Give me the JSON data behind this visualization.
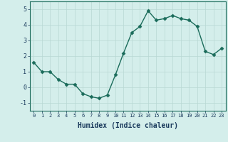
{
  "x": [
    0,
    1,
    2,
    3,
    4,
    5,
    6,
    7,
    8,
    9,
    10,
    11,
    12,
    13,
    14,
    15,
    16,
    17,
    18,
    19,
    20,
    21,
    22,
    23
  ],
  "y": [
    1.6,
    1.0,
    1.0,
    0.5,
    0.2,
    0.2,
    -0.4,
    -0.6,
    -0.7,
    -0.5,
    0.8,
    2.2,
    3.5,
    3.9,
    4.9,
    4.3,
    4.4,
    4.6,
    4.4,
    4.3,
    3.9,
    2.3,
    2.1,
    2.5
  ],
  "line_color": "#1a6b5a",
  "marker": "D",
  "marker_size": 2.5,
  "bg_color": "#d4eeeb",
  "grid_color": "#b8d8d4",
  "xlabel": "Humidex (Indice chaleur)",
  "xlim": [
    -0.5,
    23.5
  ],
  "ylim": [
    -1.5,
    5.5
  ],
  "yticks": [
    -1,
    0,
    1,
    2,
    3,
    4,
    5
  ],
  "xticks": [
    0,
    1,
    2,
    3,
    4,
    5,
    6,
    7,
    8,
    9,
    10,
    11,
    12,
    13,
    14,
    15,
    16,
    17,
    18,
    19,
    20,
    21,
    22,
    23
  ]
}
